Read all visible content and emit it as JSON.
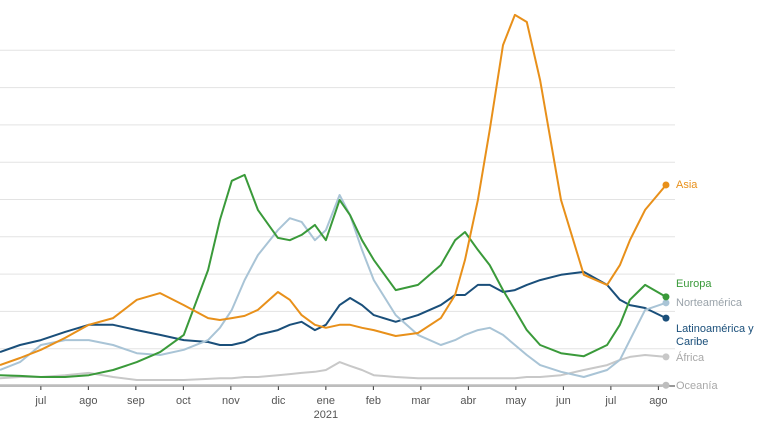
{
  "chart_data": {
    "type": "line",
    "x": [
      0.14,
      0.56,
      1,
      1.51,
      2.01,
      2.52,
      3.02,
      3.51,
      4.01,
      4.52,
      4.77,
      5.02,
      5.29,
      5.57,
      5.99,
      6.24,
      6.49,
      6.77,
      7,
      7.29,
      7.51,
      7.76,
      8.01,
      8.47,
      8.94,
      9.42,
      9.72,
      9.93,
      10.2,
      10.45,
      10.73,
      10.98,
      11.23,
      11.51,
      11.95,
      12.43,
      12.92,
      13.19,
      13.4,
      13.72,
      14.16
    ],
    "xlim": [
      0.14,
      14.35
    ],
    "xticks": [
      {
        "value": 1,
        "label": "jul"
      },
      {
        "value": 2,
        "label": "ago"
      },
      {
        "value": 3,
        "label": "sep"
      },
      {
        "value": 4,
        "label": "oct"
      },
      {
        "value": 5,
        "label": "nov"
      },
      {
        "value": 6,
        "label": "dic"
      },
      {
        "value": 7,
        "label": "ene"
      },
      {
        "value": 8,
        "label": "feb"
      },
      {
        "value": 9,
        "label": "mar"
      },
      {
        "value": 10,
        "label": "abr"
      },
      {
        "value": 11,
        "label": "may"
      },
      {
        "value": 12,
        "label": "jun"
      },
      {
        "value": 13,
        "label": "jul"
      },
      {
        "value": 14,
        "label": "ago"
      }
    ],
    "year_annotation": "2021",
    "ylim": [
      0,
      10
    ],
    "ygrid": [
      1,
      2,
      3,
      4,
      5,
      6,
      7,
      8,
      9
    ],
    "series": [
      {
        "name": "Asia",
        "color": "#e8901a",
        "values": [
          0.56,
          0.75,
          0.97,
          1.29,
          1.64,
          1.82,
          2.31,
          2.49,
          2.17,
          1.82,
          1.77,
          1.82,
          1.88,
          2.04,
          2.52,
          2.31,
          1.9,
          1.64,
          1.56,
          1.64,
          1.64,
          1.56,
          1.5,
          1.34,
          1.42,
          1.82,
          2.44,
          3.38,
          4.99,
          6.86,
          9.14,
          9.95,
          9.76,
          8.2,
          4.99,
          2.98,
          2.71,
          3.24,
          3.91,
          4.72,
          5.39
        ]
      },
      {
        "name": "Europa",
        "color": "#3a9a3a",
        "values": [
          0.29,
          0.27,
          0.24,
          0.24,
          0.29,
          0.43,
          0.64,
          0.91,
          1.37,
          3.11,
          4.45,
          5.5,
          5.66,
          4.72,
          3.97,
          3.91,
          4.05,
          4.32,
          3.91,
          4.99,
          4.58,
          3.91,
          3.38,
          2.57,
          2.71,
          3.24,
          3.91,
          4.13,
          3.65,
          3.24,
          2.57,
          2.04,
          1.5,
          1.1,
          0.88,
          0.8,
          1.1,
          1.64,
          2.31,
          2.71,
          2.39
        ]
      },
      {
        "name": "Norteamérica",
        "color": "#a9c4d6",
        "values": [
          0.43,
          0.64,
          1.1,
          1.23,
          1.23,
          1.1,
          0.88,
          0.83,
          0.97,
          1.23,
          1.56,
          2.04,
          2.84,
          3.51,
          4.18,
          4.5,
          4.4,
          3.91,
          4.18,
          5.12,
          4.58,
          3.65,
          2.84,
          1.9,
          1.37,
          1.1,
          1.23,
          1.37,
          1.5,
          1.56,
          1.37,
          1.1,
          0.83,
          0.56,
          0.38,
          0.24,
          0.43,
          0.7,
          1.23,
          2.04,
          2.23
        ]
      },
      {
        "name": "Latinoamérica y Caribe",
        "color": "#1a4f7a",
        "values": [
          0.91,
          1.1,
          1.23,
          1.45,
          1.64,
          1.64,
          1.5,
          1.37,
          1.23,
          1.18,
          1.1,
          1.1,
          1.18,
          1.37,
          1.5,
          1.64,
          1.72,
          1.5,
          1.64,
          2.17,
          2.36,
          2.17,
          1.9,
          1.72,
          1.9,
          2.17,
          2.44,
          2.44,
          2.71,
          2.71,
          2.52,
          2.57,
          2.71,
          2.84,
          2.98,
          3.06,
          2.71,
          2.31,
          2.17,
          2.09,
          1.82
        ]
      },
      {
        "name": "África",
        "color": "#c8c8c8",
        "values": [
          0.21,
          0.24,
          0.24,
          0.29,
          0.35,
          0.24,
          0.16,
          0.16,
          0.16,
          0.19,
          0.21,
          0.21,
          0.24,
          0.24,
          0.29,
          0.32,
          0.35,
          0.38,
          0.43,
          0.64,
          0.54,
          0.43,
          0.29,
          0.24,
          0.21,
          0.21,
          0.21,
          0.21,
          0.21,
          0.21,
          0.21,
          0.21,
          0.24,
          0.24,
          0.29,
          0.43,
          0.56,
          0.7,
          0.78,
          0.83,
          0.78
        ]
      },
      {
        "name": "Oceanía",
        "color": "#bdbdbd",
        "values": [
          0.02,
          0.02,
          0.02,
          0.02,
          0.02,
          0.02,
          0.02,
          0.02,
          0.02,
          0.02,
          0.02,
          0.02,
          0.02,
          0.02,
          0.02,
          0.02,
          0.02,
          0.02,
          0.02,
          0.02,
          0.02,
          0.02,
          0.02,
          0.02,
          0.02,
          0.02,
          0.02,
          0.02,
          0.02,
          0.02,
          0.02,
          0.02,
          0.02,
          0.02,
          0.02,
          0.02,
          0.02,
          0.02,
          0.02,
          0.02,
          0.02
        ]
      }
    ]
  }
}
